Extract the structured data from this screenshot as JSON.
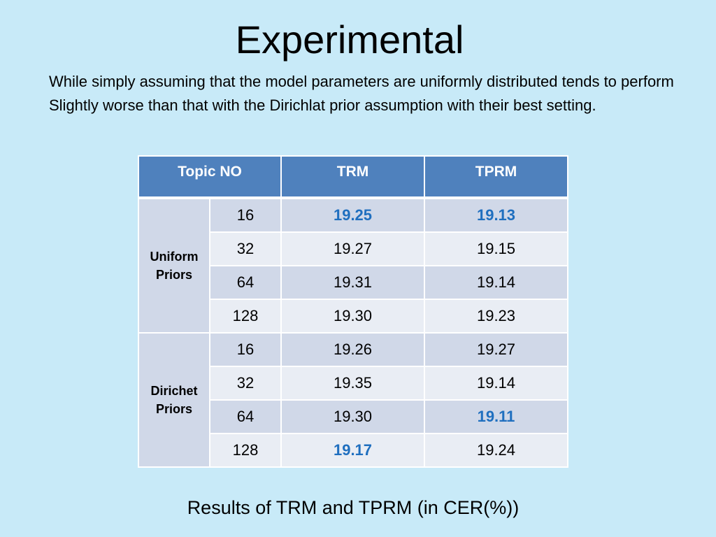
{
  "title": "Experimental",
  "body_text": "While simply assuming that the model parameters are uniformly distributed tends to perform Slightly worse than that with the Dirichlat prior assumption with their best setting.",
  "table": {
    "headers": [
      "Topic NO",
      "TRM",
      "TPRM"
    ],
    "groups": [
      {
        "label_line1": "Uniform",
        "label_line2": "Priors",
        "rows": [
          {
            "topic": "16",
            "trm": "19.25",
            "tprm": "19.13"
          },
          {
            "topic": "32",
            "trm": "19.27",
            "tprm": "19.15"
          },
          {
            "topic": "64",
            "trm": "19.31",
            "tprm": "19.14"
          },
          {
            "topic": "128",
            "trm": "19.30",
            "tprm": "19.23"
          }
        ]
      },
      {
        "label_line1": "Dirichet",
        "label_line2": "Priors",
        "rows": [
          {
            "topic": "16",
            "trm": "19.26",
            "tprm": "19.27"
          },
          {
            "topic": "32",
            "trm": "19.35",
            "tprm": "19.14"
          },
          {
            "topic": "64",
            "trm": "19.30",
            "tprm": "19.11"
          },
          {
            "topic": "128",
            "trm": "19.17",
            "tprm": "19.24"
          }
        ]
      }
    ],
    "highlight_color": "#1f6fbf",
    "header_color": "#4f81bd"
  },
  "caption": "Results  of TRM and TPRM (in CER(%))"
}
